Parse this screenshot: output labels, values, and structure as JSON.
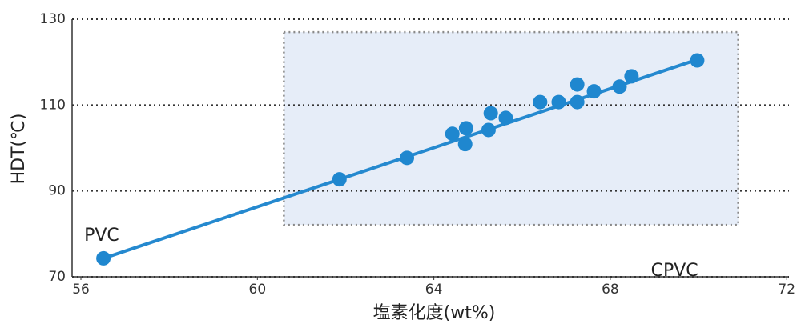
{
  "chart_data": {
    "type": "scatter",
    "x_label": "塩素化度(wt%)",
    "y_label": "HDT(℃)",
    "xlim": [
      55.8,
      72.05
    ],
    "ylim": [
      70,
      130
    ],
    "xticks": [
      56,
      60,
      64,
      68,
      72
    ],
    "yticks": [
      70,
      90,
      110,
      130
    ],
    "grid": true,
    "series": [
      {
        "color": "#1f87cf",
        "x": [
          56.51,
          61.86,
          63.39,
          64.42,
          64.73,
          64.71,
          65.24,
          65.29,
          65.63,
          66.41,
          66.83,
          67.25,
          67.25,
          67.63,
          68.21,
          68.48,
          69.97
        ],
        "values": [
          74.3,
          92.7,
          97.7,
          103.3,
          104.6,
          100.9,
          104.2,
          108.1,
          107.0,
          110.7,
          110.7,
          114.8,
          110.7,
          113.2,
          114.3,
          116.7,
          120.4
        ]
      }
    ],
    "fit_line": {
      "color": "#2589cf",
      "x": [
        56.51,
        69.97
      ],
      "values": [
        74.3,
        120.6
      ]
    },
    "region": {
      "label": "CPVC",
      "x": [
        60.6,
        70.9
      ],
      "y": [
        82.1,
        127.0
      ]
    },
    "annotation": {
      "text": "PVC",
      "x": 56.51,
      "y": 74.3
    }
  }
}
